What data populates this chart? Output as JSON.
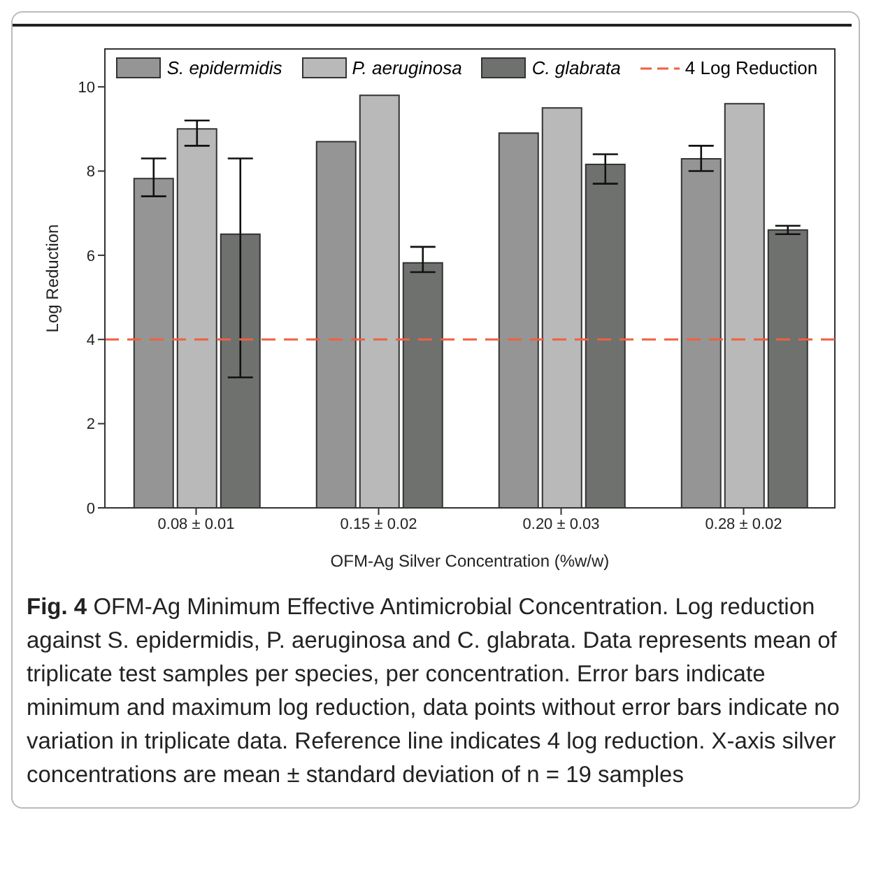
{
  "chart_data": {
    "type": "bar",
    "categories": [
      "0.08 ± 0.01",
      "0.15 ± 0.02",
      "0.20 ± 0.03",
      "0.28 ± 0.02"
    ],
    "xlabel": "OFM-Ag Silver Concentration (%w/w)",
    "ylabel": "Log Reduction",
    "series": [
      {
        "name": "S. epidermidis",
        "color": "#959595",
        "values": [
          7.82,
          8.7,
          8.9,
          8.29
        ],
        "errors": [
          [
            7.4,
            8.3
          ],
          null,
          null,
          [
            8.0,
            8.6
          ]
        ]
      },
      {
        "name": "P. aeruginosa",
        "color": "#b9b9b9",
        "values": [
          9.0,
          9.8,
          9.5,
          9.6
        ],
        "errors": [
          [
            8.6,
            9.2
          ],
          null,
          null,
          null
        ]
      },
      {
        "name": "C. glabrata",
        "color": "#6f716f",
        "values": [
          6.5,
          5.82,
          8.16,
          6.6
        ],
        "errors": [
          [
            3.1,
            8.3
          ],
          [
            5.6,
            6.2
          ],
          [
            7.7,
            8.4
          ],
          [
            6.5,
            6.7
          ]
        ]
      }
    ],
    "ylim": [
      0,
      10.9
    ],
    "yticks": [
      0,
      2,
      4,
      6,
      8,
      10
    ],
    "grid": false,
    "legend": "top",
    "ref_lines": [
      {
        "axis": "y",
        "value": 4,
        "label": "4 Log Reduction",
        "color": "#f06040",
        "line_style": "dashed"
      }
    ],
    "annotations": [
      "Fig. 4",
      "OFM-Ag Minimum Effective Antimicrobial Concentration. Log reduction against S. epidermidis, P. aeruginosa and C. glabrata. Data represents mean of triplicate test samples per species, per concentration. Error bars indicate minimum and maximum log reduction, data points without error bars indicate no variation in triplicate data. Reference line indicates 4 log reduction. X-axis silver concentrations are mean ± standard deviation of n = 19 samples"
    ]
  }
}
